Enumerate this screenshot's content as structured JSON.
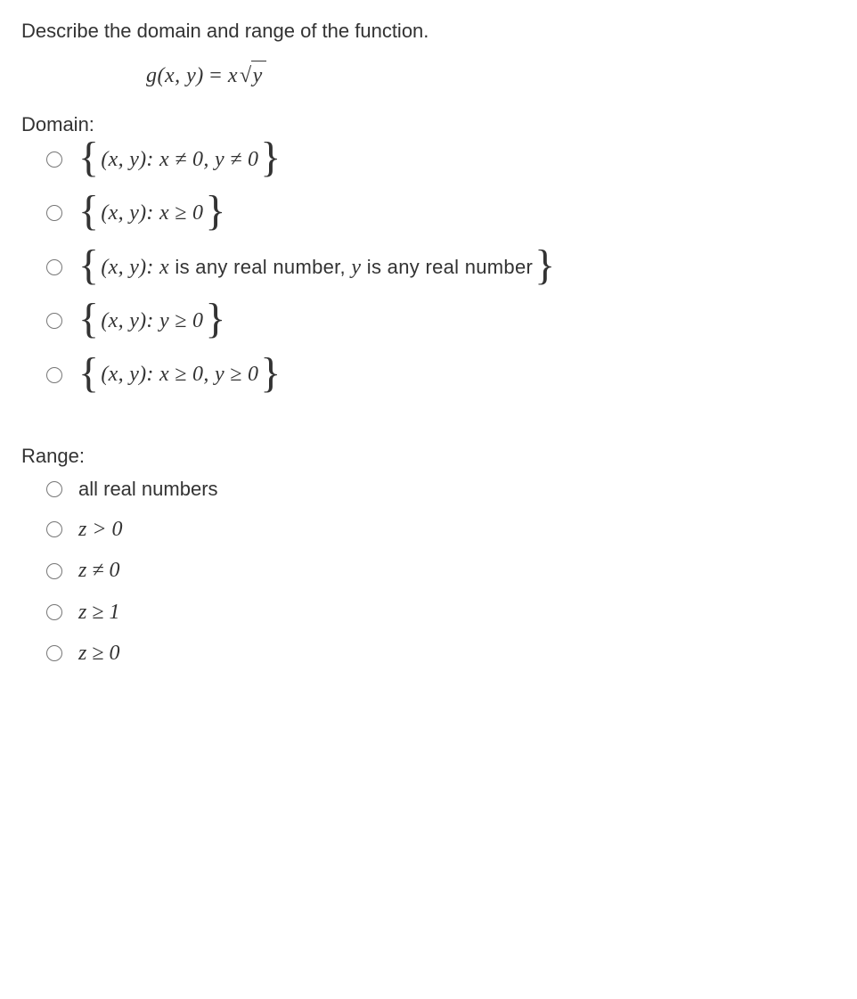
{
  "prompt": "Describe the domain and range of the function.",
  "equation": {
    "lhs_func": "g",
    "lhs_args": "(x, y)",
    "eq": " = ",
    "rhs_prefix": "x",
    "rhs_radicand": "y"
  },
  "domain": {
    "header": "Domain:",
    "options": [
      {
        "prefix": "(x, y): ",
        "body": "x ≠ 0, y ≠ 0"
      },
      {
        "prefix": "(x, y): ",
        "body": "x ≥ 0"
      },
      {
        "prefix": "(x, y): ",
        "body_word_pre": "x",
        "body_word": " is any real number, ",
        "body_word_mid": "y",
        "body_word_post": " is any real number"
      },
      {
        "prefix": "(x, y): ",
        "body": "y ≥ 0"
      },
      {
        "prefix": "(x, y): ",
        "body": "x ≥ 0, y ≥ 0"
      }
    ]
  },
  "range": {
    "header": "Range:",
    "options": [
      {
        "text": "all real numbers",
        "plain_verdana": true
      },
      {
        "text": "z > 0"
      },
      {
        "text": "z ≠ 0"
      },
      {
        "text": "z ≥ 1"
      },
      {
        "text": "z ≥ 0"
      }
    ]
  }
}
